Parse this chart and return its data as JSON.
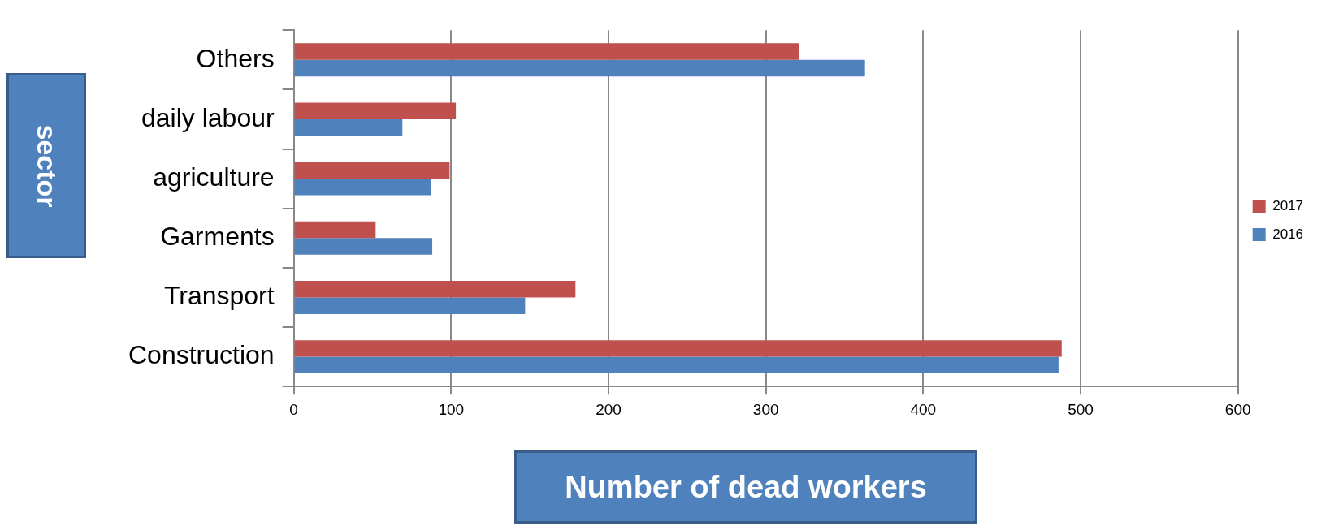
{
  "chart_data": {
    "type": "bar",
    "orientation": "horizontal",
    "xlabel": "Number of dead workers",
    "ylabel": "sector",
    "categories": [
      "Others",
      "daily labour",
      "agriculture",
      "Garments",
      "Transport",
      "Construction"
    ],
    "series": [
      {
        "name": "2017",
        "color": "#c0504d",
        "values": [
          321,
          103,
          99,
          52,
          179,
          488
        ]
      },
      {
        "name": "2016",
        "color": "#4f81bd",
        "values": [
          363,
          69,
          87,
          88,
          147,
          486
        ]
      }
    ],
    "xlim": [
      0,
      600
    ],
    "xticks": [
      0,
      100,
      200,
      300,
      400,
      500,
      600
    ],
    "grid": "x",
    "legend": "right"
  }
}
